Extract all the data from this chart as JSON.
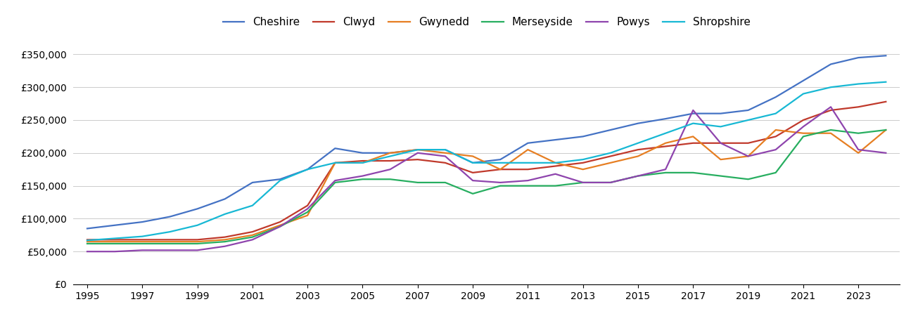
{
  "years": [
    1995,
    1996,
    1997,
    1998,
    1999,
    2000,
    2001,
    2002,
    2003,
    2004,
    2005,
    2006,
    2007,
    2008,
    2009,
    2010,
    2011,
    2012,
    2013,
    2014,
    2015,
    2016,
    2017,
    2018,
    2019,
    2020,
    2021,
    2022,
    2023,
    2024
  ],
  "Cheshire": [
    85000,
    90000,
    95000,
    103000,
    115000,
    130000,
    155000,
    160000,
    175000,
    207000,
    200000,
    200000,
    205000,
    205000,
    185000,
    190000,
    215000,
    220000,
    225000,
    235000,
    245000,
    252000,
    260000,
    260000,
    265000,
    285000,
    310000,
    335000,
    345000,
    348000
  ],
  "Clwyd": [
    68000,
    68000,
    68000,
    68000,
    68000,
    72000,
    80000,
    95000,
    120000,
    185000,
    188000,
    188000,
    190000,
    185000,
    170000,
    175000,
    175000,
    180000,
    185000,
    195000,
    205000,
    210000,
    215000,
    215000,
    215000,
    225000,
    250000,
    265000,
    270000,
    278000
  ],
  "Gwynedd": [
    65000,
    65000,
    65000,
    65000,
    65000,
    68000,
    75000,
    90000,
    105000,
    185000,
    185000,
    200000,
    205000,
    200000,
    195000,
    175000,
    205000,
    185000,
    175000,
    185000,
    195000,
    215000,
    225000,
    190000,
    195000,
    235000,
    230000,
    230000,
    200000,
    235000
  ],
  "Merseyside": [
    62000,
    62000,
    62000,
    62000,
    62000,
    65000,
    72000,
    88000,
    110000,
    155000,
    160000,
    160000,
    155000,
    155000,
    138000,
    150000,
    150000,
    150000,
    155000,
    155000,
    165000,
    170000,
    170000,
    165000,
    160000,
    170000,
    225000,
    235000,
    230000,
    235000
  ],
  "Powys": [
    50000,
    50000,
    52000,
    52000,
    52000,
    58000,
    68000,
    88000,
    115000,
    158000,
    165000,
    175000,
    200000,
    195000,
    158000,
    155000,
    158000,
    168000,
    155000,
    155000,
    165000,
    175000,
    265000,
    215000,
    195000,
    205000,
    240000,
    270000,
    205000,
    200000
  ],
  "Shropshire": [
    67000,
    70000,
    73000,
    80000,
    90000,
    107000,
    120000,
    158000,
    175000,
    185000,
    185000,
    195000,
    205000,
    205000,
    185000,
    185000,
    185000,
    185000,
    190000,
    200000,
    215000,
    230000,
    245000,
    240000,
    250000,
    260000,
    290000,
    300000,
    305000,
    308000
  ],
  "colors": {
    "Cheshire": "#4472c4",
    "Clwyd": "#c0392b",
    "Gwynedd": "#e67e22",
    "Merseyside": "#27ae60",
    "Powys": "#8e44ad",
    "Shropshire": "#17b8d4"
  },
  "ylim": [
    0,
    375000
  ],
  "yticks": [
    0,
    50000,
    100000,
    150000,
    200000,
    250000,
    300000,
    350000
  ],
  "xlim": [
    1994.5,
    2024.5
  ],
  "xticks": [
    1995,
    1997,
    1999,
    2001,
    2003,
    2005,
    2007,
    2009,
    2011,
    2013,
    2015,
    2017,
    2019,
    2021,
    2023
  ],
  "background_color": "#ffffff",
  "grid_color": "#cccccc",
  "series_order": [
    "Cheshire",
    "Clwyd",
    "Gwynedd",
    "Merseyside",
    "Powys",
    "Shropshire"
  ]
}
